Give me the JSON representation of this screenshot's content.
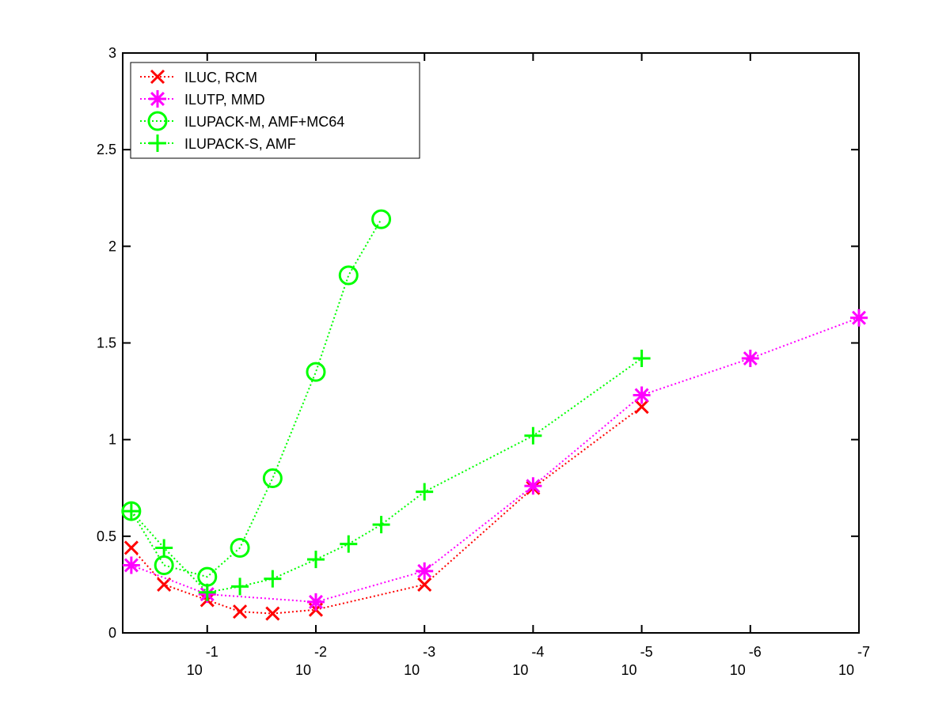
{
  "chart_data": {
    "type": "line",
    "title": "",
    "xlabel": "",
    "ylabel": "",
    "x_scale": "log",
    "x_reversed": true,
    "xlim": [
      0.6,
      1e-07
    ],
    "ylim": [
      0,
      3
    ],
    "x_ticks": [
      {
        "value": 0.1,
        "base": "10",
        "exp": "-1"
      },
      {
        "value": 0.01,
        "base": "10",
        "exp": "-2"
      },
      {
        "value": 0.001,
        "base": "10",
        "exp": "-3"
      },
      {
        "value": 0.0001,
        "base": "10",
        "exp": "-4"
      },
      {
        "value": 1e-05,
        "base": "10",
        "exp": "-5"
      },
      {
        "value": 1e-06,
        "base": "10",
        "exp": "-6"
      },
      {
        "value": 1e-07,
        "base": "10",
        "exp": "-7"
      }
    ],
    "y_ticks": [
      {
        "value": 0,
        "label": "0"
      },
      {
        "value": 0.5,
        "label": "0.5"
      },
      {
        "value": 1,
        "label": "1"
      },
      {
        "value": 1.5,
        "label": "1.5"
      },
      {
        "value": 2,
        "label": "2"
      },
      {
        "value": 2.5,
        "label": "2.5"
      },
      {
        "value": 3,
        "label": "3"
      }
    ],
    "legend_position": "top-left",
    "grid": false,
    "series": [
      {
        "name": "ILUC, RCM",
        "color": "#ff0000",
        "marker": "x",
        "x": [
          0.5,
          0.25,
          0.1,
          0.05,
          0.025,
          0.01,
          0.001,
          0.0001,
          1e-05
        ],
        "y": [
          0.44,
          0.25,
          0.17,
          0.11,
          0.1,
          0.12,
          0.25,
          0.75,
          1.17
        ]
      },
      {
        "name": "ILUTP, MMD",
        "color": "#ff00ff",
        "marker": "star",
        "x": [
          0.5,
          0.1,
          0.01,
          0.001,
          0.0001,
          1e-05,
          1e-06,
          1e-07
        ],
        "y": [
          0.35,
          0.2,
          0.16,
          0.32,
          0.76,
          1.23,
          1.42,
          1.63
        ]
      },
      {
        "name": "ILUPACK-M, AMF+MC64",
        "color": "#00ff00",
        "marker": "circle",
        "x": [
          0.5,
          0.25,
          0.1,
          0.05,
          0.025,
          0.01,
          0.005,
          0.0025
        ],
        "y": [
          0.63,
          0.35,
          0.29,
          0.44,
          0.8,
          1.35,
          1.85,
          2.14
        ]
      },
      {
        "name": "ILUPACK-S, AMF",
        "color": "#00ff00",
        "marker": "plus",
        "x": [
          0.5,
          0.25,
          0.1,
          0.05,
          0.025,
          0.01,
          0.005,
          0.0025,
          0.001,
          0.0001,
          1e-05
        ],
        "y": [
          0.63,
          0.44,
          0.21,
          0.24,
          0.28,
          0.38,
          0.46,
          0.56,
          0.73,
          1.02,
          1.42
        ]
      }
    ]
  }
}
